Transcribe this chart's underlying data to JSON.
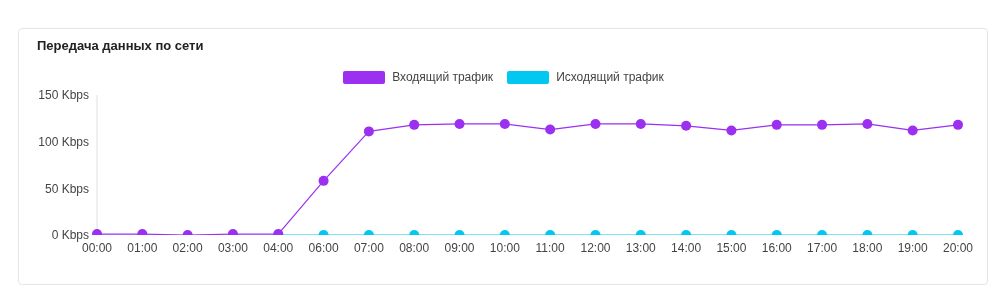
{
  "chart_data": {
    "type": "line",
    "title": "Передача данных по сети",
    "categories": [
      "00:00",
      "01:00",
      "02:00",
      "03:00",
      "04:00",
      "06:00",
      "07:00",
      "08:00",
      "09:00",
      "10:00",
      "11:00",
      "12:00",
      "13:00",
      "14:00",
      "15:00",
      "16:00",
      "17:00",
      "18:00",
      "19:00",
      "20:00"
    ],
    "series": [
      {
        "name": "Исходящий трафик",
        "color": "#00c8f0",
        "values": [
          null,
          null,
          null,
          null,
          0,
          0,
          0,
          0,
          0,
          0,
          0,
          0,
          0,
          0,
          0,
          0,
          0,
          0,
          0,
          0
        ]
      },
      {
        "name": "Входящий трафик",
        "color": "#9b30f0",
        "values": [
          1,
          1,
          0,
          1,
          1,
          58,
          111,
          118,
          119,
          119,
          113,
          119,
          119,
          117,
          112,
          118,
          118,
          119,
          112,
          118
        ]
      }
    ],
    "ylim": [
      0,
      150
    ],
    "yticks": [
      {
        "value": 0,
        "label": "0 Kbps"
      },
      {
        "value": 50,
        "label": "50 Kbps"
      },
      {
        "value": 100,
        "label": "100 Kbps"
      },
      {
        "value": 150,
        "label": "150 Kbps"
      }
    ],
    "grid": false,
    "legend": "top",
    "marker": "circle",
    "line_style": "solid"
  }
}
